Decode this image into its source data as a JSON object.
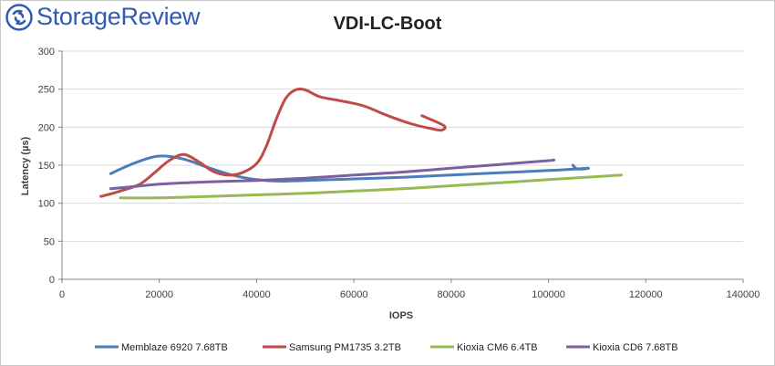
{
  "brand": {
    "logo_text": "StorageReview"
  },
  "chart_data": {
    "type": "line",
    "title": "VDI-LC-Boot",
    "xlabel": "IOPS",
    "ylabel": "Latency (µs)",
    "xlim": [
      0,
      140000
    ],
    "ylim": [
      0,
      300
    ],
    "xticks": [
      0,
      20000,
      40000,
      60000,
      80000,
      100000,
      120000,
      140000
    ],
    "yticks": [
      0,
      50,
      100,
      150,
      200,
      250,
      300
    ],
    "grid": "horizontal",
    "legend_position": "bottom",
    "series": [
      {
        "name": "Memblaze 6920 7.68TB",
        "color": "#4a7ebb",
        "points": [
          [
            10000,
            139
          ],
          [
            15000,
            153
          ],
          [
            20000,
            162
          ],
          [
            25000,
            158
          ],
          [
            30000,
            147
          ],
          [
            35000,
            137
          ],
          [
            40000,
            131
          ],
          [
            45000,
            129
          ],
          [
            50000,
            130
          ],
          [
            60000,
            132
          ],
          [
            70000,
            134
          ],
          [
            80000,
            137
          ],
          [
            90000,
            140
          ],
          [
            100000,
            143
          ],
          [
            108000,
            146
          ],
          [
            106000,
            145
          ],
          [
            105000,
            150
          ]
        ]
      },
      {
        "name": "Samsung PM1735 3.2TB",
        "color": "#be4b48",
        "points": [
          [
            8000,
            109
          ],
          [
            12000,
            116
          ],
          [
            16000,
            125
          ],
          [
            19000,
            140
          ],
          [
            22000,
            156
          ],
          [
            25000,
            164
          ],
          [
            28000,
            155
          ],
          [
            31000,
            142
          ],
          [
            34000,
            137
          ],
          [
            37000,
            140
          ],
          [
            40000,
            152
          ],
          [
            42000,
            175
          ],
          [
            44000,
            210
          ],
          [
            46000,
            238
          ],
          [
            48000,
            249
          ],
          [
            50000,
            249
          ],
          [
            53000,
            240
          ],
          [
            57000,
            235
          ],
          [
            62000,
            228
          ],
          [
            67000,
            215
          ],
          [
            72000,
            204
          ],
          [
            76000,
            198
          ],
          [
            78000,
            196
          ],
          [
            78500,
            202
          ],
          [
            74000,
            215
          ]
        ]
      },
      {
        "name": "Kioxia CM6 6.4TB",
        "color": "#98b954",
        "points": [
          [
            12000,
            107
          ],
          [
            20000,
            107
          ],
          [
            30000,
            109
          ],
          [
            40000,
            111
          ],
          [
            50000,
            113
          ],
          [
            60000,
            116
          ],
          [
            70000,
            119
          ],
          [
            80000,
            123
          ],
          [
            90000,
            127
          ],
          [
            100000,
            131
          ],
          [
            110000,
            135
          ],
          [
            115000,
            137
          ]
        ]
      },
      {
        "name": "Kioxia CD6 7.68TB",
        "color": "#7d60a0",
        "points": [
          [
            10000,
            119
          ],
          [
            15000,
            122
          ],
          [
            20000,
            125
          ],
          [
            30000,
            128
          ],
          [
            40000,
            130
          ],
          [
            50000,
            133
          ],
          [
            60000,
            137
          ],
          [
            70000,
            141
          ],
          [
            80000,
            146
          ],
          [
            90000,
            151
          ],
          [
            100000,
            156
          ],
          [
            101000,
            157
          ]
        ]
      }
    ]
  }
}
